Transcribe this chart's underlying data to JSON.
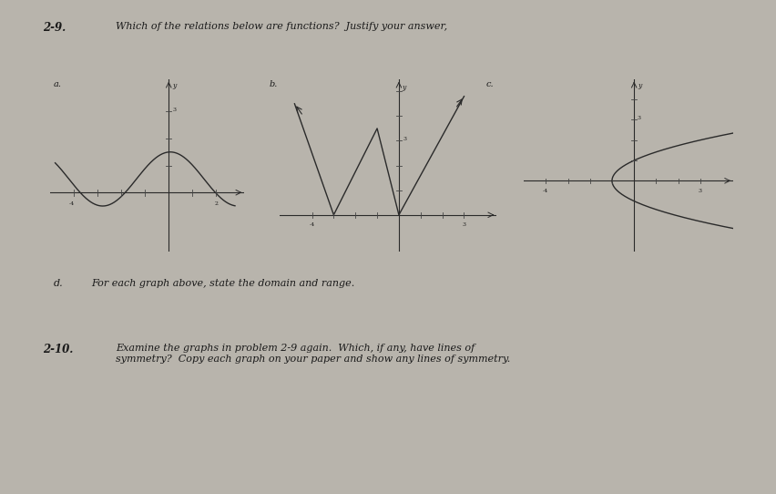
{
  "background_color": "#b8b4ac",
  "page_background": "#e8e4dc",
  "title_29": "2-9.",
  "question_29": "Which of the relations below are functions?  Justify your answer,",
  "label_a": "a.",
  "label_b": "b.",
  "label_c": "c.",
  "label_d": "d.",
  "question_d": "For each graph above, state the domain and range.",
  "title_210": "2-10.",
  "question_210": "Examine the graphs in problem 2-9 again.  Which, if any, have lines of\nsymmetry?  Copy each graph on your paper and show any lines of symmetry.",
  "graph_line_color": "#2a2a2a",
  "axis_color": "#2a2a2a",
  "tick_color": "#444444",
  "text_color": "#1a1a1a"
}
